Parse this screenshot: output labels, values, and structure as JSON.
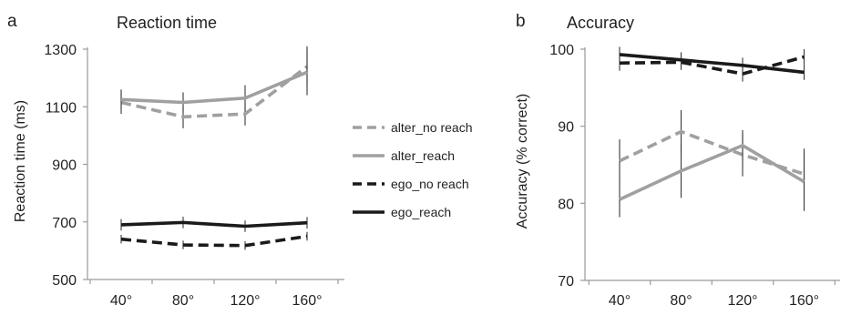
{
  "chart_data": [
    {
      "type": "line",
      "panel_letter": "a",
      "title": "Reaction time",
      "xlabel": "",
      "ylabel": "Reaction time (ms)",
      "categories": [
        "40°",
        "80°",
        "120°",
        "160°"
      ],
      "ylim": [
        500,
        1300
      ],
      "yticks": [
        "500",
        "700",
        "900",
        "1100",
        "1300"
      ],
      "grid": false,
      "series": [
        {
          "name": "alter_no reach",
          "color": "#a0a0a0",
          "dashed": true,
          "values": [
            1115,
            1065,
            1075,
            1240
          ],
          "errors": [
            40,
            40,
            40,
            70
          ]
        },
        {
          "name": "alter_reach",
          "color": "#a0a0a0",
          "dashed": false,
          "values": [
            1125,
            1115,
            1130,
            1220
          ],
          "errors": [
            35,
            35,
            45,
            80
          ]
        },
        {
          "name": "ego_no reach",
          "color": "#1a1a1a",
          "dashed": true,
          "values": [
            640,
            620,
            618,
            650
          ],
          "errors": [
            15,
            15,
            15,
            15
          ]
        },
        {
          "name": "ego_reach",
          "color": "#1a1a1a",
          "dashed": false,
          "values": [
            690,
            698,
            685,
            697
          ],
          "errors": [
            20,
            20,
            20,
            20
          ]
        }
      ]
    },
    {
      "type": "line",
      "panel_letter": "b",
      "title": "Accuracy",
      "xlabel": "",
      "ylabel": "Accuracy (% correct)",
      "categories": [
        "40°",
        "80°",
        "120°",
        "160°"
      ],
      "ylim": [
        70,
        100
      ],
      "yticks": [
        "70",
        "80",
        "90",
        "100"
      ],
      "grid": false,
      "series": [
        {
          "name": "alter_no reach",
          "color": "#a0a0a0",
          "dashed": true,
          "values": [
            85.5,
            89.3,
            86.3,
            83.8
          ],
          "errors": [
            2.8,
            2.8,
            2.8,
            3.3
          ]
        },
        {
          "name": "alter_reach",
          "color": "#a0a0a0",
          "dashed": false,
          "values": [
            80.5,
            84.2,
            87.5,
            82.8
          ],
          "errors": [
            2.3,
            3.5,
            2.0,
            3.8
          ]
        },
        {
          "name": "ego_no reach",
          "color": "#1a1a1a",
          "dashed": true,
          "values": [
            98.2,
            98.3,
            96.8,
            99.0
          ],
          "errors": [
            1.0,
            1.0,
            1.0,
            1.0
          ]
        },
        {
          "name": "ego_reach",
          "color": "#1a1a1a",
          "dashed": false,
          "values": [
            99.3,
            98.6,
            97.9,
            97.0
          ],
          "errors": [
            1.0,
            1.0,
            1.0,
            1.0
          ]
        }
      ]
    }
  ],
  "legend": {
    "placement": "between panels",
    "items": [
      {
        "label": "alter_no reach",
        "color": "#a0a0a0",
        "dashed": true
      },
      {
        "label": "alter_reach",
        "color": "#a0a0a0",
        "dashed": false
      },
      {
        "label": "ego_no reach",
        "color": "#1a1a1a",
        "dashed": true
      },
      {
        "label": "ego_reach",
        "color": "#1a1a1a",
        "dashed": false
      }
    ]
  }
}
